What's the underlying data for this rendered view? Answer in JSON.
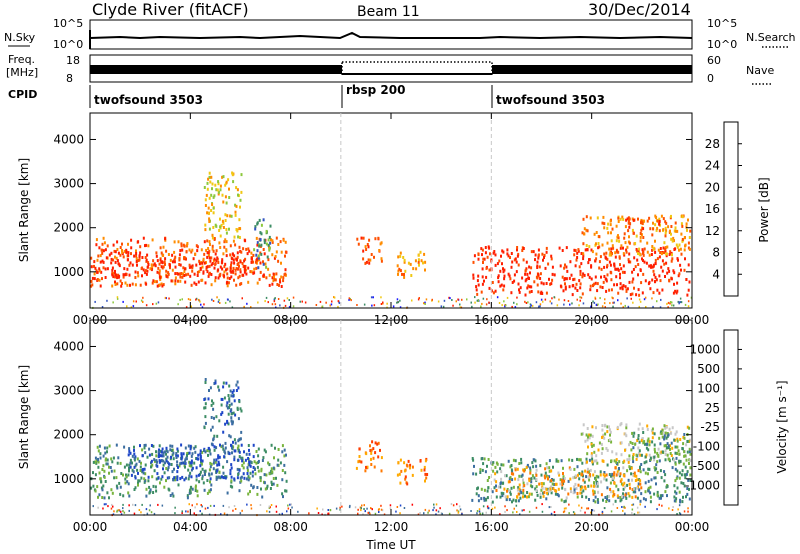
{
  "header": {
    "station": "Clyde River (fitACF)",
    "beam": "Beam 11",
    "date": "30/Dec/2014"
  },
  "top_panels": {
    "nsky_label": "N.Sky",
    "nsky_ticks": [
      "10^5",
      "10^0"
    ],
    "nsearch_label": "N.Search",
    "nsearch_ticks": [
      "10^5",
      "10^0"
    ],
    "freq_label_line1": "Freq.",
    "freq_label_line2": "[MHz]",
    "freq_ticks": [
      "18",
      "8"
    ],
    "nave_label": "Nave",
    "nave_ticks": [
      "60",
      "0"
    ],
    "cpid_label": "CPID",
    "cpid_segments": [
      {
        "label": "twofsound 3503",
        "start_hour": 0,
        "end_hour": 10
      },
      {
        "label": "rbsp 200",
        "start_hour": 10,
        "end_hour": 16
      },
      {
        "label": "twofsound 3503",
        "start_hour": 16,
        "end_hour": 24
      }
    ]
  },
  "power_colorbar": {
    "label": "Power [dB]",
    "ticks": [
      "4",
      "8",
      "12",
      "16",
      "20",
      "24",
      "28"
    ],
    "colors": [
      "#1a1aff",
      "#3355c0",
      "#3c8c64",
      "#8cc83c",
      "#f0c814",
      "#ff8c00",
      "#ff5000",
      "#ff1e00"
    ]
  },
  "velocity_colorbar": {
    "label": "Velocity [m s⁻¹]",
    "ticks": [
      "1000",
      "500",
      "100",
      "25",
      "-25",
      "-100",
      "-500",
      "-1000"
    ],
    "colors": [
      "#1e46c8",
      "#3c6ea0",
      "#3c8c64",
      "#78b43c",
      "#c8c8c8",
      "#ffaa00",
      "#ff7800",
      "#ff3c00",
      "#ff0000"
    ]
  },
  "chart_data": [
    {
      "type": "heatmap",
      "name": "power",
      "ylabel": "Slant Range [km]",
      "xlabel": "",
      "x_ticks": [
        "00:00",
        "04:00",
        "08:00",
        "12:00",
        "16:00",
        "20:00",
        "00:00"
      ],
      "y_ticks": [
        "1000",
        "2000",
        "3000",
        "4000"
      ],
      "xlim": [
        0,
        24
      ],
      "ylim": [
        180,
        4600
      ],
      "regions": [
        {
          "t0": 0.0,
          "t1": 7.8,
          "r0": 700,
          "r1": 1800,
          "level": 6
        },
        {
          "t0": 0.2,
          "t1": 6.8,
          "r0": 900,
          "r1": 1500,
          "level": 7
        },
        {
          "t0": 4.5,
          "t1": 6.0,
          "r0": 1800,
          "r1": 3300,
          "level": 4
        },
        {
          "t0": 6.5,
          "t1": 7.2,
          "r0": 1100,
          "r1": 2300,
          "level": 2
        },
        {
          "t0": 10.6,
          "t1": 11.6,
          "r0": 1200,
          "r1": 1800,
          "level": 6
        },
        {
          "t0": 12.2,
          "t1": 13.4,
          "r0": 900,
          "r1": 1500,
          "level": 5
        },
        {
          "t0": 15.2,
          "t1": 23.9,
          "r0": 500,
          "r1": 1600,
          "level": 7
        },
        {
          "t0": 19.5,
          "t1": 23.9,
          "r0": 1400,
          "r1": 2300,
          "level": 5
        },
        {
          "t0": 21.2,
          "t1": 22.8,
          "r0": 1900,
          "r1": 2300,
          "level": 6
        }
      ]
    },
    {
      "type": "heatmap",
      "name": "velocity",
      "ylabel": "Slant Range [km]",
      "xlabel": "Time UT",
      "x_ticks": [
        "00:00",
        "04:00",
        "08:00",
        "12:00",
        "16:00",
        "20:00",
        "00:00"
      ],
      "y_ticks": [
        "1000",
        "2000",
        "3000",
        "4000"
      ],
      "xlim": [
        0,
        24
      ],
      "ylim": [
        180,
        4600
      ],
      "regions": [
        {
          "t0": 0.0,
          "t1": 7.8,
          "r0": 600,
          "r1": 1800,
          "level": 2
        },
        {
          "t0": 1.5,
          "t1": 6.5,
          "r0": 1000,
          "r1": 1800,
          "level": 0
        },
        {
          "t0": 4.5,
          "t1": 6.0,
          "r0": 1800,
          "r1": 3300,
          "level": 1
        },
        {
          "t0": 10.6,
          "t1": 11.6,
          "r0": 1200,
          "r1": 1900,
          "level": 6
        },
        {
          "t0": 12.2,
          "t1": 13.4,
          "r0": 900,
          "r1": 1500,
          "level": 6
        },
        {
          "t0": 15.2,
          "t1": 23.9,
          "r0": 500,
          "r1": 1500,
          "level": 2
        },
        {
          "t0": 16.0,
          "t1": 22.0,
          "r0": 600,
          "r1": 1300,
          "level": 5
        },
        {
          "t0": 19.5,
          "t1": 23.9,
          "r0": 1400,
          "r1": 2300,
          "level": 4
        },
        {
          "t0": 21.5,
          "t1": 23.9,
          "r0": 1500,
          "r1": 2100,
          "level": 2
        }
      ]
    }
  ]
}
